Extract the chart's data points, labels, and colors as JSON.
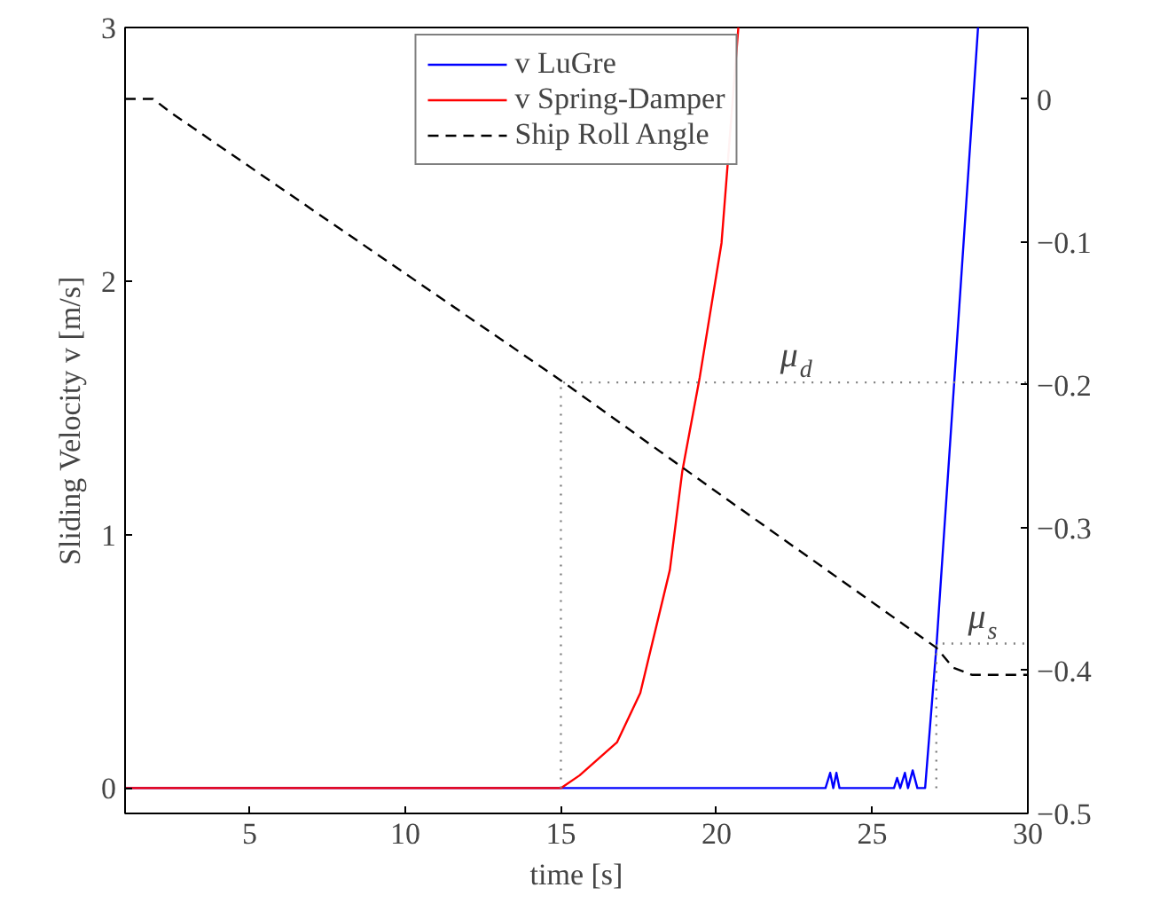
{
  "chart_data": {
    "type": "line",
    "xlabel": "time [s]",
    "ylabel": "Sliding Velocity v [m/s]",
    "xlim": [
      1,
      30
    ],
    "xticks": [
      5,
      10,
      15,
      20,
      25,
      30
    ],
    "ylim": [
      -0.1,
      3
    ],
    "yticks": [
      0,
      1,
      2,
      3
    ],
    "y2lim": [
      -0.5,
      0.05
    ],
    "y2ticks": [
      {
        "value": 0,
        "label": "0"
      },
      {
        "value": -0.1,
        "label": "−0.1"
      },
      {
        "value": -0.2,
        "label": "−0.2"
      },
      {
        "value": -0.3,
        "label": "−0.3"
      },
      {
        "value": -0.4,
        "label": "−0.4"
      },
      {
        "value": -0.5,
        "label": "−0.5"
      }
    ],
    "grid": false,
    "legend": "top",
    "series": [
      {
        "name": "v LuGre",
        "color": "#0000ff",
        "x": [
          1,
          23.5,
          23.65,
          23.75,
          23.85,
          23.95,
          24.1,
          25.7,
          25.8,
          25.9,
          26.05,
          26.15,
          26.3,
          26.45,
          26.7,
          27.07,
          28.4
        ],
        "values": [
          0,
          0,
          0.06,
          0,
          0.06,
          0,
          0,
          0,
          0.04,
          0,
          0.06,
          0,
          0.07,
          0,
          0,
          0.57,
          3
        ]
      },
      {
        "name": "v Spring-Damper",
        "color": "#ff0000",
        "x": [
          1,
          15,
          15.6,
          16.8,
          17.55,
          18.5,
          18.9,
          19.46,
          20.16,
          20.7
        ],
        "values": [
          0,
          0,
          0.05,
          0.18,
          0.375,
          0.86,
          1.25,
          1.62,
          2.15,
          3
        ]
      },
      {
        "name": "Ship Roll Angle",
        "color": "#000000",
        "axis": "y2",
        "line_style": "dashed",
        "x": [
          1,
          1.9,
          2.5,
          15,
          20,
          27.06,
          27.6,
          28.2,
          30
        ],
        "values": [
          0,
          0,
          -0.01,
          -0.197,
          -0.275,
          -0.384,
          -0.398,
          -0.403,
          -0.403
        ]
      },
      {
        "color": "#808080",
        "line_style": "dotted",
        "x": [
          15,
          15,
          30
        ],
        "values": [
          0,
          1.6,
          1.6
        ]
      },
      {
        "color": "#808080",
        "line_style": "dotted",
        "x": [
          27.06,
          27.06,
          30
        ],
        "values": [
          0,
          0.57,
          0.57
        ]
      }
    ],
    "annotations": [
      "μ$_{d}$",
      "μ$_{s}$"
    ]
  }
}
